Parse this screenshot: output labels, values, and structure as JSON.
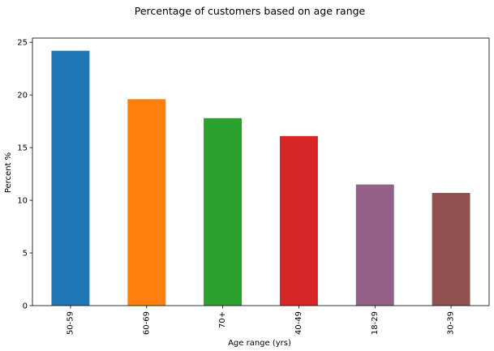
{
  "chart_data": {
    "type": "bar",
    "title": "Percentage of customers based on age range",
    "xlabel": "Age range (yrs)",
    "ylabel": "Percent %",
    "categories": [
      "50-59",
      "60-69",
      "70+",
      "40-49",
      "18-29",
      "30-39"
    ],
    "values": [
      24.2,
      19.6,
      17.8,
      16.1,
      11.5,
      10.7
    ],
    "colors": [
      "#1f77b4",
      "#ff7f0e",
      "#2ca02c",
      "#d62728",
      "#936089",
      "#8f5150"
    ],
    "ylim": [
      0,
      25.4
    ],
    "yticks": [
      0,
      5,
      10,
      15,
      20,
      25
    ],
    "grid": false,
    "legend": "none"
  }
}
